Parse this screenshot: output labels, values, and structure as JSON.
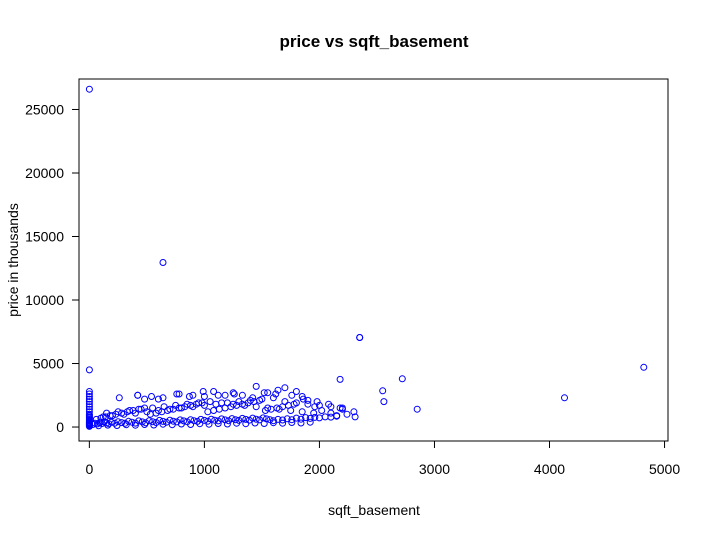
{
  "chart_data": {
    "type": "scatter",
    "title": "price vs sqft_basement",
    "xlabel": "sqft_basement",
    "ylabel": "price in thousands",
    "xlim": [
      -90,
      5030
    ],
    "ylim": [
      -1100,
      27400
    ],
    "xticks": [
      0,
      1000,
      2000,
      3000,
      4000,
      5000
    ],
    "yticks": [
      0,
      5000,
      10000,
      15000,
      20000,
      25000
    ],
    "xtick_labels": [
      "0",
      "1000",
      "2000",
      "3000",
      "4000",
      "5000"
    ],
    "ytick_labels": [
      "0",
      "5000",
      "10000",
      "15000",
      "20000",
      "25000"
    ],
    "grid": false,
    "marker": "open-circle",
    "point_color": "#0000ff",
    "series": [
      {
        "x": [
          0,
          0,
          0,
          0,
          0,
          0,
          0,
          0,
          0,
          0,
          0,
          0,
          0,
          0,
          0,
          0,
          0,
          0,
          0,
          0,
          0,
          0,
          0,
          0,
          0,
          30,
          50,
          70,
          90,
          110,
          130,
          150,
          170,
          190,
          220,
          250,
          280,
          310,
          340,
          370,
          400,
          430,
          460,
          490,
          520,
          550,
          580,
          610,
          640,
          670,
          700,
          730,
          760,
          790,
          820,
          850,
          880,
          910,
          940,
          970,
          1000,
          1030,
          1060,
          1090,
          1120,
          1150,
          1180,
          1210,
          1240,
          1270,
          1300,
          1330,
          1360,
          1390,
          1420,
          1450,
          1480,
          1510,
          1540,
          1570,
          1600,
          1640,
          1680,
          1720,
          1760,
          1800,
          1840,
          1880,
          1920,
          1960,
          2000,
          2050,
          2100,
          2150,
          60,
          100,
          140,
          180,
          230,
          280,
          330,
          380,
          430,
          480,
          530,
          580,
          630,
          680,
          730,
          780,
          830,
          880,
          930,
          980,
          1030,
          1080,
          1130,
          1180,
          1230,
          1280,
          1330,
          1380,
          1430,
          1480,
          1530,
          1580,
          1630,
          1680,
          1730,
          1780,
          80,
          160,
          240,
          320,
          400,
          480,
          560,
          640,
          720,
          800,
          880,
          960,
          1040,
          1120,
          1200,
          1280,
          1360,
          1440,
          1520,
          1600,
          1680,
          1760,
          1840,
          1920,
          120,
          200,
          300,
          400,
          500,
          600,
          700,
          800,
          900,
          1000,
          1100,
          1200,
          1300,
          1400,
          1500,
          1600,
          1700,
          1800,
          1900,
          2000,
          2100,
          2200,
          150,
          250,
          350,
          450,
          550,
          650,
          750,
          850,
          950,
          1050,
          1150,
          1250,
          1350,
          1450,
          1550,
          1650,
          1750,
          1850,
          1950,
          260,
          420,
          540,
          600,
          780,
          900,
          1000,
          1080,
          1180,
          1260,
          1420,
          1520,
          1640,
          1760,
          1860,
          1980,
          2080,
          2180,
          420,
          480,
          640,
          760,
          870,
          990,
          1120,
          1250,
          1330,
          1450,
          1550,
          1620,
          1700,
          1800,
          1850,
          1900,
          1960,
          2020,
          2100,
          2150,
          2200,
          2240,
          2300,
          2310,
          2180,
          2350,
          2550,
          2560,
          2720,
          2850,
          4130,
          4820
        ],
        "y": [
          26600,
          4500,
          2800,
          2600,
          2400,
          2200,
          2000,
          1800,
          1600,
          1400,
          1200,
          1000,
          900,
          800,
          700,
          600,
          500,
          400,
          350,
          300,
          250,
          200,
          150,
          100,
          50,
          200,
          300,
          250,
          350,
          280,
          400,
          320,
          260,
          380,
          300,
          420,
          350,
          290,
          450,
          380,
          310,
          480,
          400,
          330,
          500,
          420,
          360,
          520,
          440,
          380,
          540,
          460,
          400,
          560,
          480,
          420,
          580,
          500,
          440,
          600,
          520,
          460,
          620,
          540,
          480,
          640,
          560,
          500,
          660,
          580,
          520,
          680,
          600,
          540,
          700,
          620,
          560,
          720,
          640,
          580,
          500,
          600,
          550,
          650,
          580,
          700,
          620,
          740,
          680,
          760,
          720,
          800,
          780,
          850,
          600,
          700,
          800,
          900,
          1000,
          1100,
          1200,
          1300,
          1400,
          1500,
          1000,
          1100,
          1200,
          1300,
          1400,
          1500,
          1600,
          1700,
          1800,
          1900,
          1200,
          1300,
          1400,
          1500,
          1600,
          1700,
          1800,
          1900,
          2000,
          2100,
          1300,
          1400,
          1500,
          1600,
          1700,
          1800,
          100,
          150,
          120,
          180,
          140,
          200,
          160,
          220,
          180,
          240,
          200,
          260,
          220,
          280,
          240,
          300,
          260,
          320,
          280,
          340,
          300,
          360,
          320,
          380,
          800,
          900,
          1000,
          1100,
          1200,
          1300,
          1400,
          1500,
          1600,
          1700,
          1800,
          1900,
          2000,
          2100,
          2200,
          2300,
          2000,
          1900,
          1800,
          1700,
          1600,
          1500,
          1100,
          1200,
          1300,
          1400,
          1500,
          1600,
          1700,
          1800,
          1900,
          2000,
          1900,
          1800,
          1700,
          1600,
          1500,
          1400,
          1300,
          1200,
          1100,
          2300,
          2500,
          2400,
          2200,
          2600,
          2500,
          2400,
          2800,
          2500,
          2600,
          2300,
          2700,
          2900,
          2500,
          2200,
          2000,
          1800,
          1500,
          2500,
          2200,
          2300,
          2600,
          2400,
          2800,
          2500,
          2700,
          2500,
          3200,
          2700,
          2600,
          3100,
          2800,
          2400,
          2100,
          1600,
          1300,
          1100,
          900,
          1400,
          1000,
          1200,
          800,
          3750,
          7050,
          2850,
          2000,
          3800,
          1400,
          2300,
          4700
        ]
      }
    ],
    "outliers_note_free": true,
    "extra_points": [
      {
        "x": 640,
        "y": 12950
      },
      {
        "x": 2350,
        "y": 7050
      }
    ]
  }
}
